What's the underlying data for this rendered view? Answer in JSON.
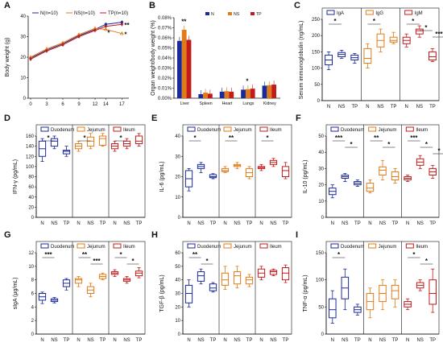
{
  "colors": {
    "N": "#1b2a9a",
    "NS": "#e07b17",
    "TP": "#c11b1b"
  },
  "chart_data": [
    {
      "panel": "A",
      "type": "line",
      "legend": [
        "N(n=10)",
        "NS(n=10)",
        "TP(n=10)"
      ],
      "xlabel": "",
      "ylabel": "Body weight (g)",
      "x": [
        0,
        3,
        6,
        9,
        12,
        14,
        17
      ],
      "xticks": [
        "0",
        "3",
        "6",
        "9",
        "12",
        "14",
        "17"
      ],
      "yticks": [
        "0",
        "10",
        "20",
        "30",
        "40"
      ],
      "ylim": [
        0,
        40
      ],
      "series": [
        {
          "name": "N(n=10)",
          "values": [
            19.5,
            23.5,
            26.5,
            30.5,
            33.5,
            36,
            37
          ]
        },
        {
          "name": "NS(n=10)",
          "values": [
            20,
            24,
            27,
            31,
            34,
            33.5,
            31.5
          ]
        },
        {
          "name": "TP(n=10)",
          "values": [
            19,
            23,
            26,
            30,
            33,
            35,
            36
          ]
        }
      ],
      "annotations": [
        "*",
        "**",
        "*"
      ]
    },
    {
      "panel": "B",
      "type": "bar",
      "legend": [
        "N",
        "NS",
        "TP"
      ],
      "ylabel": "Organ weight/body weight (%)",
      "categories": [
        "Liver",
        "Spleen",
        "Heart",
        "Lungs",
        "Kidney"
      ],
      "yticks": [
        "0.00%",
        "0.01%",
        "0.02%",
        "0.03%",
        "0.04%",
        "0.05%",
        "0.06%",
        "0.07%",
        "0.08%"
      ],
      "ylim": [
        0,
        0.08
      ],
      "series": [
        {
          "name": "N",
          "values": [
            0.057,
            0.004,
            0.0065,
            0.0085,
            0.0125
          ]
        },
        {
          "name": "NS",
          "values": [
            0.068,
            0.0055,
            0.007,
            0.009,
            0.013
          ]
        },
        {
          "name": "TP",
          "values": [
            0.058,
            0.0045,
            0.0065,
            0.0095,
            0.0135
          ]
        }
      ],
      "annotations": [
        "**",
        "*"
      ]
    },
    {
      "panel": "C",
      "type": "box",
      "legend": [
        "IgA",
        "IgG",
        "IgM"
      ],
      "ylabel": "Serum immunoglobulin (ng/mL)",
      "yticks": [
        "0",
        "50",
        "100",
        "150",
        "200",
        "250"
      ],
      "ylim": [
        0,
        250
      ],
      "groups": [
        {
          "name": "IgA",
          "boxes": [
            [
              95,
              110,
              125,
              140,
              150
            ],
            [
              130,
              135,
              142,
              148,
              155
            ],
            [
              115,
              125,
              132,
              140,
              145
            ]
          ],
          "sig": [
            "*"
          ]
        },
        {
          "name": "IgG",
          "boxes": [
            [
              100,
              115,
              130,
              160,
              175
            ],
            [
              150,
              165,
              185,
              205,
              220
            ],
            [
              175,
              180,
              185,
              195,
              210
            ]
          ],
          "sig": [
            "*"
          ]
        },
        {
          "name": "IgM",
          "boxes": [
            [
              165,
              175,
              185,
              195,
              205
            ],
            [
              195,
              205,
              215,
              220,
              230
            ],
            [
              120,
              125,
              135,
              150,
              160
            ]
          ],
          "sig": [
            "*",
            "*",
            "***"
          ]
        }
      ],
      "xticks": [
        "N",
        "NS",
        "TP"
      ]
    },
    {
      "panel": "D",
      "type": "box",
      "legend": [
        "Duodenum",
        "Jejunum",
        "Ileum"
      ],
      "ylabel": "IFN-γ (pg/mL)",
      "yticks": [
        "0",
        "20",
        "40",
        "60",
        "80",
        "100",
        "120",
        "140",
        "160"
      ],
      "ylim": [
        0,
        160
      ],
      "groups": [
        {
          "name": "Duodenum",
          "boxes": [
            [
              110,
              120,
              135,
              150,
              155
            ],
            [
              135,
              140,
              150,
              155,
              160
            ],
            [
              120,
              125,
              130,
              132,
              140
            ]
          ],
          "sig": [
            "*"
          ]
        },
        {
          "name": "Jejunum",
          "boxes": [
            [
              130,
              135,
              140,
              145,
              150
            ],
            [
              135,
              140,
              150,
              158,
              165
            ],
            [
              140,
              142,
              155,
              160,
              165
            ]
          ],
          "sig": [
            "*"
          ]
        },
        {
          "name": "Ileum",
          "boxes": [
            [
              130,
              135,
              140,
              145,
              150
            ],
            [
              135,
              140,
              145,
              150,
              155
            ],
            [
              140,
              145,
              150,
              160,
              165
            ]
          ],
          "sig": [
            "*"
          ]
        }
      ],
      "xticks": [
        "N",
        "NS",
        "TP"
      ]
    },
    {
      "panel": "E",
      "type": "box",
      "legend": [
        "Duodenum",
        "Jejunum",
        "Ileum"
      ],
      "ylabel": "IL-6 (pg/mL)",
      "yticks": [
        "0",
        "10",
        "20",
        "30",
        "40"
      ],
      "ylim": [
        0,
        40
      ],
      "groups": [
        {
          "name": "Duodenum",
          "boxes": [
            [
              13,
              15,
              19,
              23,
              24
            ],
            [
              22,
              24,
              25,
              26,
              27
            ],
            [
              19,
              19.5,
              20,
              21,
              21.5
            ]
          ],
          "sig": [
            "*"
          ]
        },
        {
          "name": "Jejunum",
          "boxes": [
            [
              22,
              22.5,
              23,
              24,
              25
            ],
            [
              24,
              25,
              25.5,
              26,
              27
            ],
            [
              19,
              20,
              22,
              24,
              25
            ]
          ],
          "sig": [
            "**"
          ]
        },
        {
          "name": "Ileum",
          "boxes": [
            [
              23,
              24,
              24.5,
              25,
              26
            ],
            [
              25,
              26,
              27,
              28,
              29
            ],
            [
              19,
              20,
              23,
              25,
              27
            ]
          ],
          "sig": [
            "*"
          ]
        }
      ],
      "xticks": [
        "N",
        "NS",
        "TP"
      ]
    },
    {
      "panel": "F",
      "type": "box",
      "legend": [
        "Duodenum",
        "Jejunum",
        "Ileum"
      ],
      "ylabel": "IL-10 (pg/mL)",
      "yticks": [
        "0",
        "10",
        "20",
        "30",
        "40",
        "50"
      ],
      "ylim": [
        0,
        50
      ],
      "groups": [
        {
          "name": "Duodenum",
          "boxes": [
            [
              12,
              14,
              16,
              18,
              20
            ],
            [
              22,
              24,
              25,
              26,
              27
            ],
            [
              19,
              20,
              21,
              22,
              23
            ]
          ],
          "sig": [
            "***",
            "*"
          ]
        },
        {
          "name": "Jejunum",
          "boxes": [
            [
              15,
              16,
              18,
              21,
              23
            ],
            [
              23,
              26,
              29,
              31,
              35
            ],
            [
              21,
              23,
              25,
              28,
              30
            ]
          ],
          "sig": [
            "**",
            "*"
          ]
        },
        {
          "name": "Ileum",
          "boxes": [
            [
              22,
              23,
              24,
              25,
              26
            ],
            [
              30,
              32,
              34,
              36,
              38
            ],
            [
              24,
              26,
              28,
              30,
              32
            ]
          ],
          "sig": [
            "***",
            "*",
            "*"
          ]
        }
      ],
      "xticks": [
        "N",
        "NS",
        "TP"
      ]
    },
    {
      "panel": "G",
      "type": "box",
      "legend": [
        "Duodenum",
        "Jejunum",
        "Ileum"
      ],
      "ylabel": "sIgA (μg/mL)",
      "yticks": [
        "0",
        "2",
        "4",
        "6",
        "8",
        "10",
        "12"
      ],
      "ylim": [
        0,
        12
      ],
      "groups": [
        {
          "name": "Duodenum",
          "boxes": [
            [
              4.5,
              5,
              5.5,
              6,
              6.2
            ],
            [
              4.6,
              4.8,
              5,
              5.2,
              5.4
            ],
            [
              6.5,
              7,
              7.5,
              8,
              8.2
            ]
          ],
          "sig": [
            "***"
          ]
        },
        {
          "name": "Jejunum",
          "boxes": [
            [
              7,
              7.5,
              8,
              8.2,
              8.5
            ],
            [
              5.5,
              6,
              6.5,
              7,
              7.5
            ],
            [
              8,
              8.2,
              8.5,
              8.8,
              9
            ]
          ],
          "sig": [
            "**",
            "***"
          ]
        },
        {
          "name": "Ileum",
          "boxes": [
            [
              8.5,
              8.8,
              9,
              9.2,
              9.5
            ],
            [
              7.5,
              7.8,
              8,
              8.2,
              8.5
            ],
            [
              8.3,
              8.6,
              9,
              9.3,
              9.8
            ]
          ],
          "sig": [
            "*",
            "*"
          ]
        }
      ],
      "xticks": [
        "N",
        "NS",
        "TP"
      ]
    },
    {
      "panel": "H",
      "type": "box",
      "legend": [
        "Duodenum",
        "Jejunum",
        "Ileum"
      ],
      "ylabel": "TGF-β (pg/mL)",
      "yticks": [
        "0",
        "10",
        "20",
        "30",
        "40",
        "50",
        "60"
      ],
      "ylim": [
        0,
        60
      ],
      "groups": [
        {
          "name": "Duodenum",
          "boxes": [
            [
              20,
              23,
              30,
              36,
              40
            ],
            [
              37,
              39,
              43,
              46,
              48
            ],
            [
              31,
              32,
              34,
              37,
              38
            ]
          ],
          "sig": [
            "**",
            "*"
          ]
        },
        {
          "name": "Jejunum",
          "boxes": [
            [
              33,
              36,
              40,
              45,
              50
            ],
            [
              34,
              37,
              43,
              46,
              50
            ],
            [
              35,
              37,
              40,
              42,
              44
            ]
          ],
          "sig": []
        },
        {
          "name": "Ileum",
          "boxes": [
            [
              40,
              42,
              45,
              48,
              50
            ],
            [
              43,
              44,
              46,
              47,
              48
            ],
            [
              38,
              40,
              45,
              49,
              51
            ]
          ],
          "sig": []
        }
      ],
      "xticks": [
        "N",
        "NS",
        "TP"
      ]
    },
    {
      "panel": "I",
      "type": "box",
      "legend": [
        "Duodenum",
        "Jejunum",
        "Ileum"
      ],
      "ylabel": "TNF-α (pg/mL)",
      "yticks": [
        "0",
        "50",
        "100",
        "150"
      ],
      "ylim": [
        0,
        150
      ],
      "groups": [
        {
          "name": "Duodenum",
          "boxes": [
            [
              20,
              30,
              45,
              65,
              80
            ],
            [
              45,
              65,
              85,
              105,
              120
            ],
            [
              35,
              40,
              45,
              50,
              55
            ]
          ],
          "sig": [
            "*"
          ]
        },
        {
          "name": "Jejunum",
          "boxes": [
            [
              30,
              45,
              60,
              75,
              85
            ],
            [
              45,
              60,
              75,
              90,
              100
            ],
            [
              50,
              65,
              80,
              90,
              100
            ]
          ],
          "sig": []
        },
        {
          "name": "Ileum",
          "boxes": [
            [
              45,
              50,
              55,
              60,
              65
            ],
            [
              80,
              85,
              90,
              95,
              100
            ],
            [
              40,
              55,
              75,
              100,
              120
            ]
          ],
          "sig": [
            "*",
            "*"
          ]
        }
      ],
      "xticks": [
        "N",
        "NS",
        "TP"
      ]
    }
  ]
}
